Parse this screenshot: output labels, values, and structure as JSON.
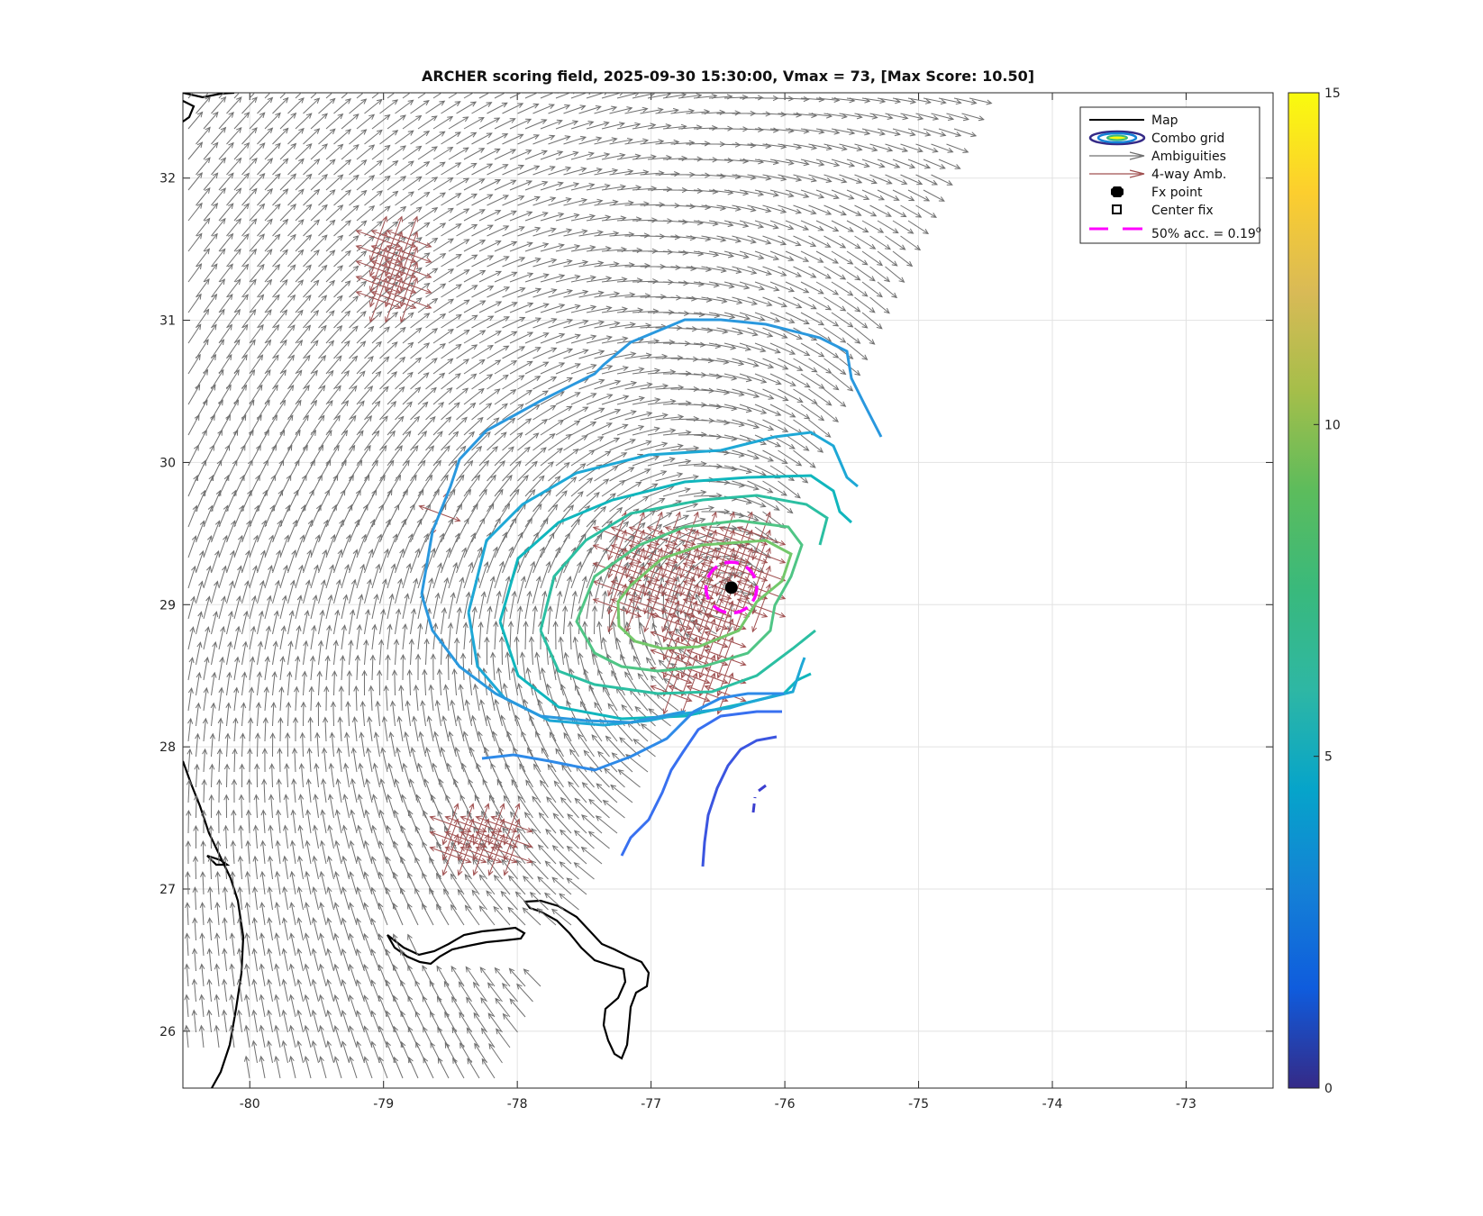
{
  "title": "ARCHER scoring field, 2025-09-30 15:30:00, Vmax = 73, [Max Score: 10.50]",
  "chart_data": {
    "type": "map-contour",
    "x_range": [
      -80.5,
      -72.35
    ],
    "y_range": [
      25.6,
      32.6
    ],
    "x_ticks": [
      "-80",
      "-79",
      "-78",
      "-77",
      "-76",
      "-75",
      "-74",
      "-73"
    ],
    "x_tick_values": [
      -80,
      -79,
      -78,
      -77,
      -76,
      -75,
      -74,
      -73
    ],
    "y_ticks": [
      "26",
      "27",
      "28",
      "29",
      "30",
      "31",
      "32"
    ],
    "y_tick_values": [
      26,
      27,
      28,
      29,
      30,
      31,
      32
    ],
    "grid": true,
    "colorbar": {
      "min": 0,
      "max": 15,
      "tick_labels": [
        "0",
        "5",
        "10",
        "15"
      ],
      "tick_values": [
        0,
        5,
        10,
        15
      ],
      "colormap": "parula"
    },
    "fx_point": {
      "lon": -76.4,
      "lat": 29.12
    },
    "accuracy_radius_deg": 0.19,
    "storm_center": {
      "lon": -76.45,
      "lat": 29.0
    },
    "contour_levels": [
      {
        "level": 1,
        "color": "#3b3fd0"
      },
      {
        "level": 2,
        "color": "#3b55e0"
      },
      {
        "level": 3,
        "color": "#3870f0"
      },
      {
        "level": 4,
        "color": "#2e8ae8"
      },
      {
        "level": 5,
        "color": "#2a98de"
      },
      {
        "level": 6,
        "color": "#1ea8d6"
      },
      {
        "level": 7,
        "color": "#10b6bd"
      },
      {
        "level": 8,
        "color": "#2bbfa2"
      },
      {
        "level": 9,
        "color": "#4fc585"
      },
      {
        "level": 10,
        "color": "#73c86a"
      }
    ]
  },
  "legend": {
    "position": "top-right",
    "items": [
      {
        "label": "Map",
        "icon": "black-line-icon"
      },
      {
        "label": "Combo grid",
        "icon": "contour-ellipse-icon"
      },
      {
        "label": "Ambiguities",
        "icon": "gray-arrow-icon"
      },
      {
        "label": "4-way Amb.",
        "icon": "red-arrow-icon"
      },
      {
        "label": "Fx point",
        "icon": "black-dot-icon"
      },
      {
        "label": "Center fix",
        "icon": "open-square-icon"
      },
      {
        "label": "50% acc. = 0.19",
        "suffix": "o",
        "icon": "magenta-dash-icon"
      }
    ]
  },
  "colors": {
    "ambiguity_arrow": "#707070",
    "four_way_arrow": "#a05050",
    "map_line": "#000000",
    "accuracy_circle": "#ff00ff"
  }
}
